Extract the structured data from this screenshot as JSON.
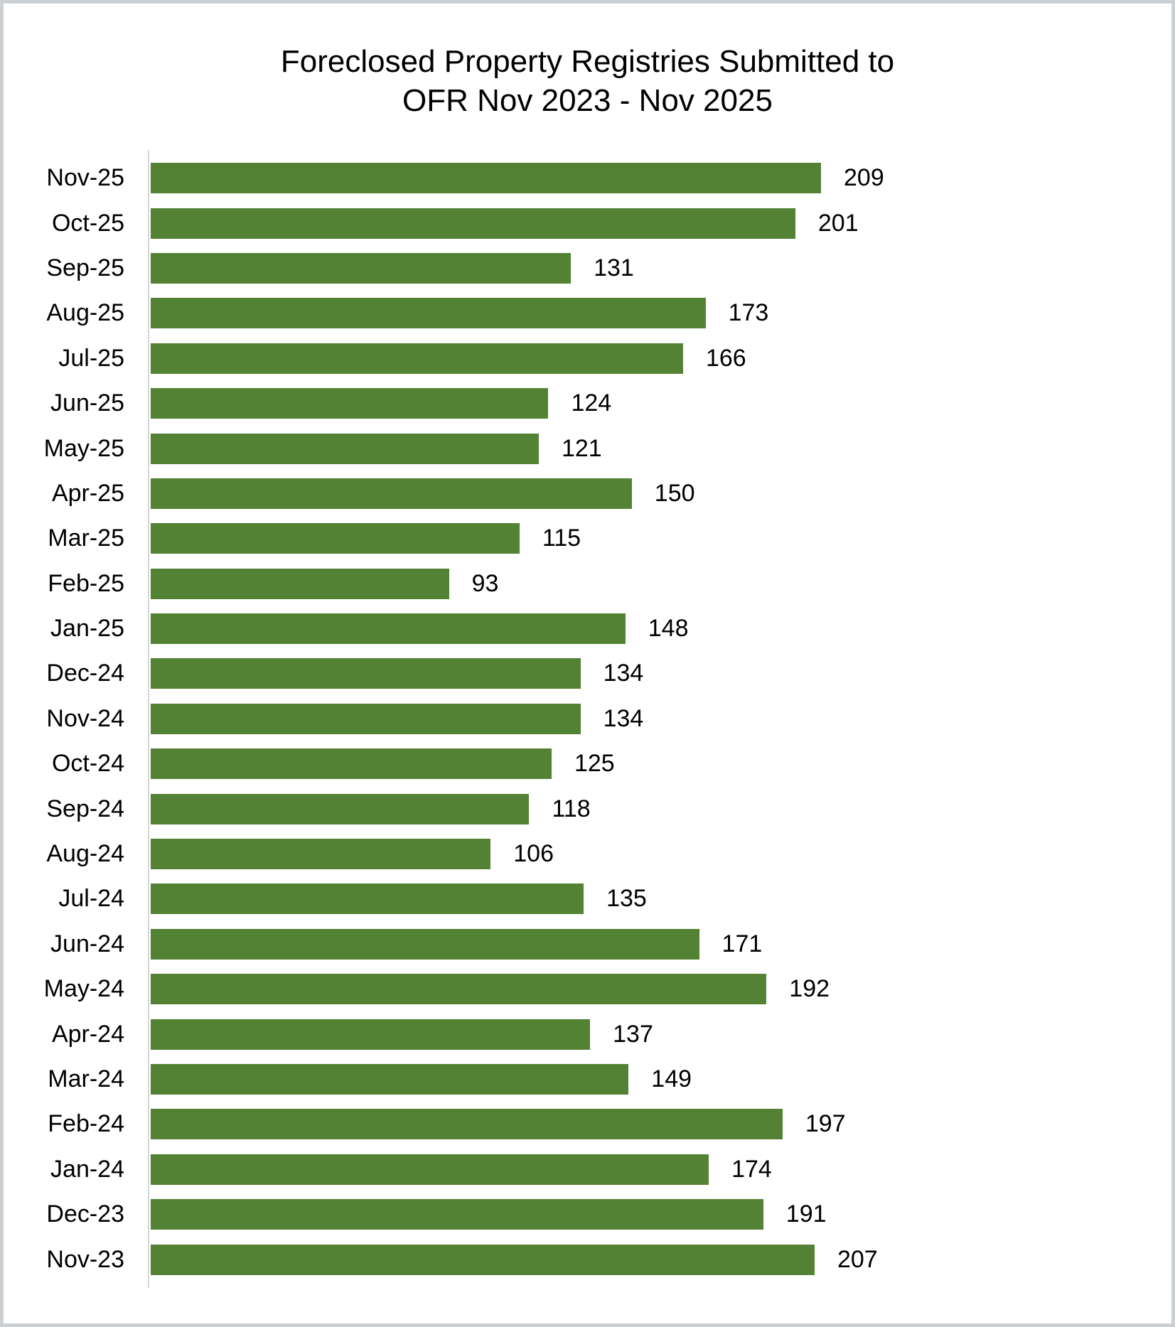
{
  "title": {
    "line1": "Foreclosed Property Registries Submitted to",
    "line2": "OFR Nov 2023 - Nov 2025"
  },
  "chart_data": {
    "type": "bar",
    "orientation": "horizontal",
    "title": "Foreclosed Property Registries Submitted to OFR Nov 2023 - Nov 2025",
    "categories": [
      "Nov-25",
      "Oct-25",
      "Sep-25",
      "Aug-25",
      "Jul-25",
      "Jun-25",
      "May-25",
      "Apr-25",
      "Mar-25",
      "Feb-25",
      "Jan-25",
      "Dec-24",
      "Nov-24",
      "Oct-24",
      "Sep-24",
      "Aug-24",
      "Jul-24",
      "Jun-24",
      "May-24",
      "Apr-24",
      "Mar-24",
      "Feb-24",
      "Jan-24",
      "Dec-23",
      "Nov-23"
    ],
    "values": [
      209,
      201,
      131,
      173,
      166,
      124,
      121,
      150,
      115,
      93,
      148,
      134,
      134,
      125,
      118,
      106,
      135,
      171,
      192,
      137,
      149,
      197,
      174,
      191,
      207
    ],
    "xlim": [
      0,
      209
    ],
    "xlabel": "",
    "ylabel": "",
    "grid": false,
    "legend": false,
    "value_labels_shown": true,
    "bar_color": "#548235"
  },
  "colors": {
    "bar": "#548235",
    "axis_line": "#d6d6d6",
    "frame_border": "#cdd0d3",
    "text": "#000000",
    "background": "#ffffff"
  }
}
